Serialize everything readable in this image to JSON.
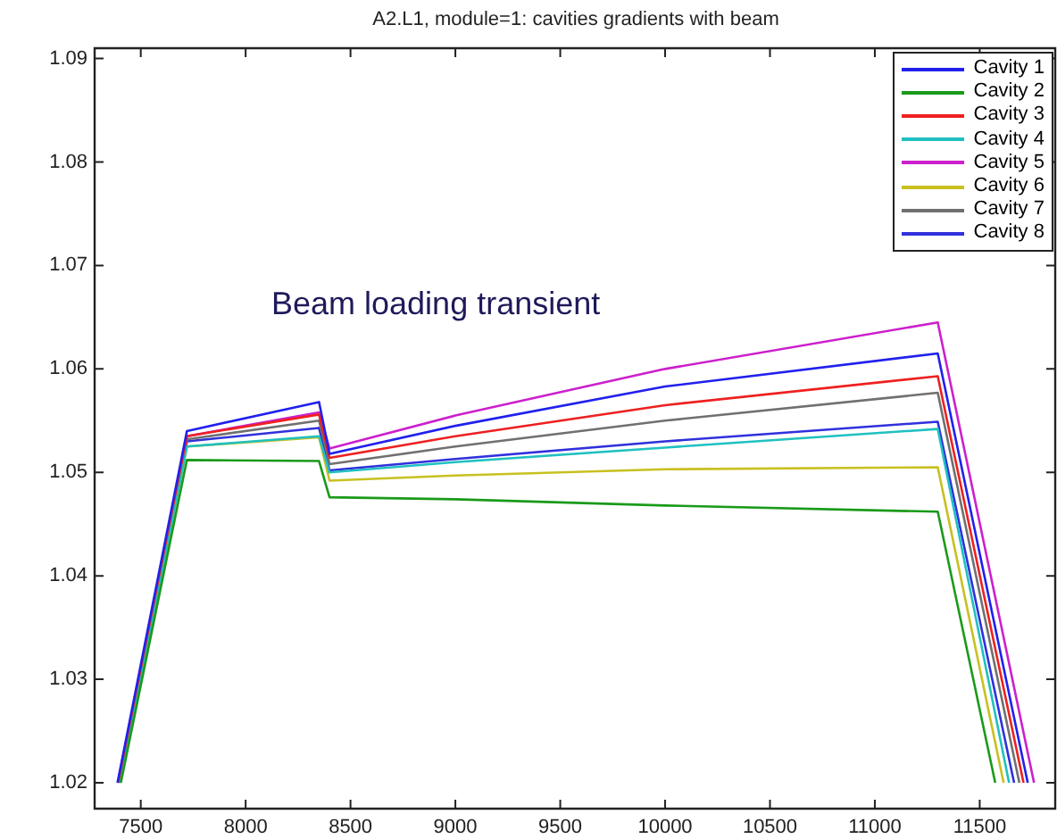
{
  "chart_data": {
    "type": "line",
    "title": "A2.L1, module=1: cavities gradients with beam",
    "annotations": [
      "Beam loading transient"
    ],
    "xlim": [
      7280,
      11860
    ],
    "ylim": [
      1.0175,
      1.091
    ],
    "xticks": [
      7500,
      8000,
      8500,
      9000,
      9500,
      10000,
      10500,
      11000,
      11500
    ],
    "yticks": [
      1.02,
      1.03,
      1.04,
      1.05,
      1.06,
      1.07,
      1.08,
      1.09
    ],
    "grid": false,
    "legend": "top right",
    "marker": "none",
    "line_style": "solid",
    "series": [
      {
        "name": "Cavity 1",
        "color": "#2020ee",
        "x": [
          7389,
          7720,
          8350,
          8400,
          9000,
          10000,
          11300,
          11729
        ],
        "values": [
          1.02,
          1.054,
          1.0568,
          1.0518,
          1.0545,
          1.0583,
          1.0615,
          1.02
        ]
      },
      {
        "name": "Cavity 2",
        "color": "#1a9a1a",
        "x": [
          7405,
          7720,
          8350,
          8400,
          9000,
          10000,
          11300,
          11574
        ],
        "values": [
          1.02,
          1.0512,
          1.0511,
          1.0476,
          1.0474,
          1.0468,
          1.0462,
          1.02
        ]
      },
      {
        "name": "Cavity 3",
        "color": "#ee2020",
        "x": [
          7392,
          7720,
          8350,
          8400,
          9000,
          10000,
          11300,
          11709
        ],
        "values": [
          1.02,
          1.0535,
          1.0556,
          1.0514,
          1.0535,
          1.0565,
          1.0593,
          1.02
        ]
      },
      {
        "name": "Cavity 4",
        "color": "#20c0c0",
        "x": [
          7400,
          7720,
          8350,
          8400,
          9000,
          10000,
          11300,
          11640
        ],
        "values": [
          1.02,
          1.0525,
          1.0535,
          1.05,
          1.051,
          1.0524,
          1.0542,
          1.02
        ]
      },
      {
        "name": "Cavity 5",
        "color": "#cc20cc",
        "x": [
          7391,
          7720,
          8350,
          8400,
          9000,
          10000,
          11300,
          11759
        ],
        "values": [
          1.02,
          1.0535,
          1.0558,
          1.0523,
          1.0555,
          1.06,
          1.0645,
          1.02
        ]
      },
      {
        "name": "Cavity 6",
        "color": "#c8c020",
        "x": [
          7402,
          7720,
          8350,
          8400,
          9000,
          10000,
          11300,
          11614
        ],
        "values": [
          1.02,
          1.0525,
          1.0534,
          1.0492,
          1.0497,
          1.0503,
          1.0505,
          1.02
        ]
      },
      {
        "name": "Cavity 7",
        "color": "#707070",
        "x": [
          7395,
          7720,
          8350,
          8400,
          9000,
          10000,
          11300,
          11689
        ],
        "values": [
          1.02,
          1.0532,
          1.055,
          1.0508,
          1.0525,
          1.055,
          1.0577,
          1.02
        ]
      },
      {
        "name": "Cavity 8",
        "color": "#3030dd",
        "x": [
          7397,
          7720,
          8350,
          8400,
          9000,
          10000,
          11300,
          11664
        ],
        "values": [
          1.02,
          1.053,
          1.0543,
          1.0502,
          1.0513,
          1.053,
          1.0549,
          1.02
        ]
      }
    ]
  }
}
